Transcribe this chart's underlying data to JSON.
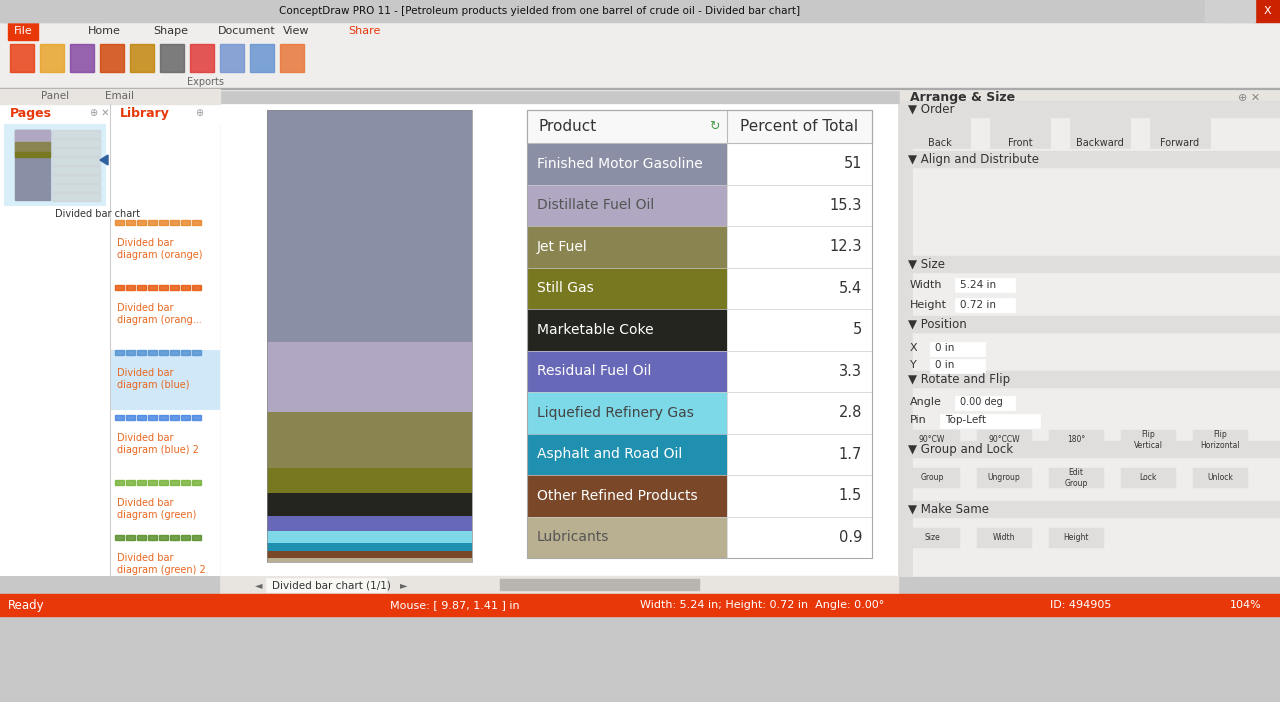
{
  "window_title": "ConceptDraw PRO 11 - [Petroleum products yielded from one barrel of crude oil - Divided bar chart]",
  "products": [
    {
      "name": "Finished Motor Gasoline",
      "percent": 51.0,
      "color": "#8a8fa5",
      "text_color": "#ffffff"
    },
    {
      "name": "Distillate Fuel Oil",
      "percent": 15.3,
      "color": "#b0a8c2",
      "text_color": "#555555"
    },
    {
      "name": "Jet Fuel",
      "percent": 12.3,
      "color": "#8a8550",
      "text_color": "#ffffff"
    },
    {
      "name": "Still Gas",
      "percent": 5.4,
      "color": "#787820",
      "text_color": "#ffffff"
    },
    {
      "name": "Marketable Coke",
      "percent": 5.0,
      "color": "#252520",
      "text_color": "#ffffff"
    },
    {
      "name": "Residual Fuel Oil",
      "percent": 3.3,
      "color": "#6868b8",
      "text_color": "#ffffff"
    },
    {
      "name": "Liquefied Refinery Gas",
      "percent": 2.8,
      "color": "#7dd8e8",
      "text_color": "#444444"
    },
    {
      "name": "Asphalt and Road Oil",
      "percent": 1.7,
      "color": "#2090b0",
      "text_color": "#ffffff"
    },
    {
      "name": "Other Refined Products",
      "percent": 1.5,
      "color": "#7a4828",
      "text_color": "#ffffff"
    },
    {
      "name": "Lubricants",
      "percent": 0.9,
      "color": "#b8b090",
      "text_color": "#555555"
    }
  ],
  "col1_header": "Product",
  "col2_header": "Percent of Total",
  "titlebar_color": "#c8c8c8",
  "titlebar_text_color": "#333333",
  "menu_bg": "#f0eeec",
  "canvas_bg": "#ffffff",
  "left_panel_bg": "#f8f8f8",
  "right_panel_bg": "#f0eeec",
  "status_bar_color": "#e8380a",
  "tab_bg": "#e0dedd"
}
